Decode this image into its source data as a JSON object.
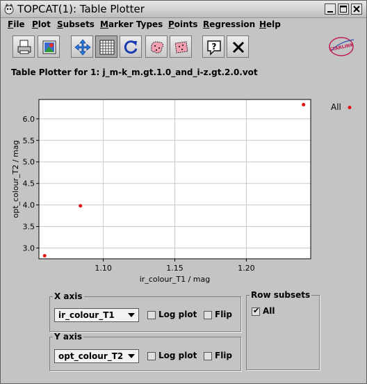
{
  "window": {
    "title": "TOPCAT(1): Table Plotter"
  },
  "menubar": {
    "items": [
      {
        "first": "F",
        "rest": "ile"
      },
      {
        "first": "P",
        "rest": "lot"
      },
      {
        "first": "S",
        "rest": "ubsets"
      },
      {
        "first": "M",
        "rest": "arker Types"
      },
      {
        "first": "P",
        "rest": "oints"
      },
      {
        "first": "R",
        "rest": "egression"
      },
      {
        "first": "H",
        "rest": "elp"
      }
    ]
  },
  "toolbar": {
    "buttons": [
      "print-icon",
      "export-image-icon",
      "axis-zoom-icon",
      "grid-icon",
      "replot-icon",
      "subset-from-region-icon",
      "subset-from-points-icon",
      "help-icon",
      "close-icon"
    ],
    "logo_text": "STARLINK"
  },
  "plot_title": "Table Plotter for 1: j_m-k_m.gt.1.0_and_i-z.gt.2.0.vot",
  "chart_data": {
    "type": "scatter",
    "title": "Table Plotter for 1: j_m-k_m.gt.1.0_and_i-z.gt.2.0.vot",
    "xlabel": "ir_colour_T1 / mag",
    "ylabel": "opt_colour_T2 / mag",
    "xlim": [
      1.055,
      1.245
    ],
    "ylim": [
      2.75,
      6.45
    ],
    "x_ticks": [
      1.1,
      1.15,
      1.2
    ],
    "x_tick_labels": [
      "1.10",
      "1.15",
      "1.20"
    ],
    "y_ticks": [
      3.0,
      3.5,
      4.0,
      4.5,
      5.0,
      5.5,
      6.0
    ],
    "y_tick_labels": [
      "3.0",
      "3.5",
      "4.0",
      "4.5",
      "5.0",
      "5.5",
      "6.0"
    ],
    "grid": true,
    "legend": "right",
    "series": [
      {
        "name": "All",
        "color": "#e01010",
        "x": [
          1.059,
          1.084,
          1.24
        ],
        "y": [
          2.82,
          3.98,
          6.33
        ]
      }
    ]
  },
  "x_axis": {
    "legend": "X axis",
    "column": "ir_colour_T1",
    "log_label": "Log plot",
    "flip_label": "Flip"
  },
  "y_axis": {
    "legend": "Y axis",
    "column": "opt_colour_T2",
    "log_label": "Log plot",
    "flip_label": "Flip"
  },
  "row_subsets": {
    "legend": "Row subsets",
    "items": [
      {
        "label": "All",
        "checked": true
      }
    ]
  }
}
